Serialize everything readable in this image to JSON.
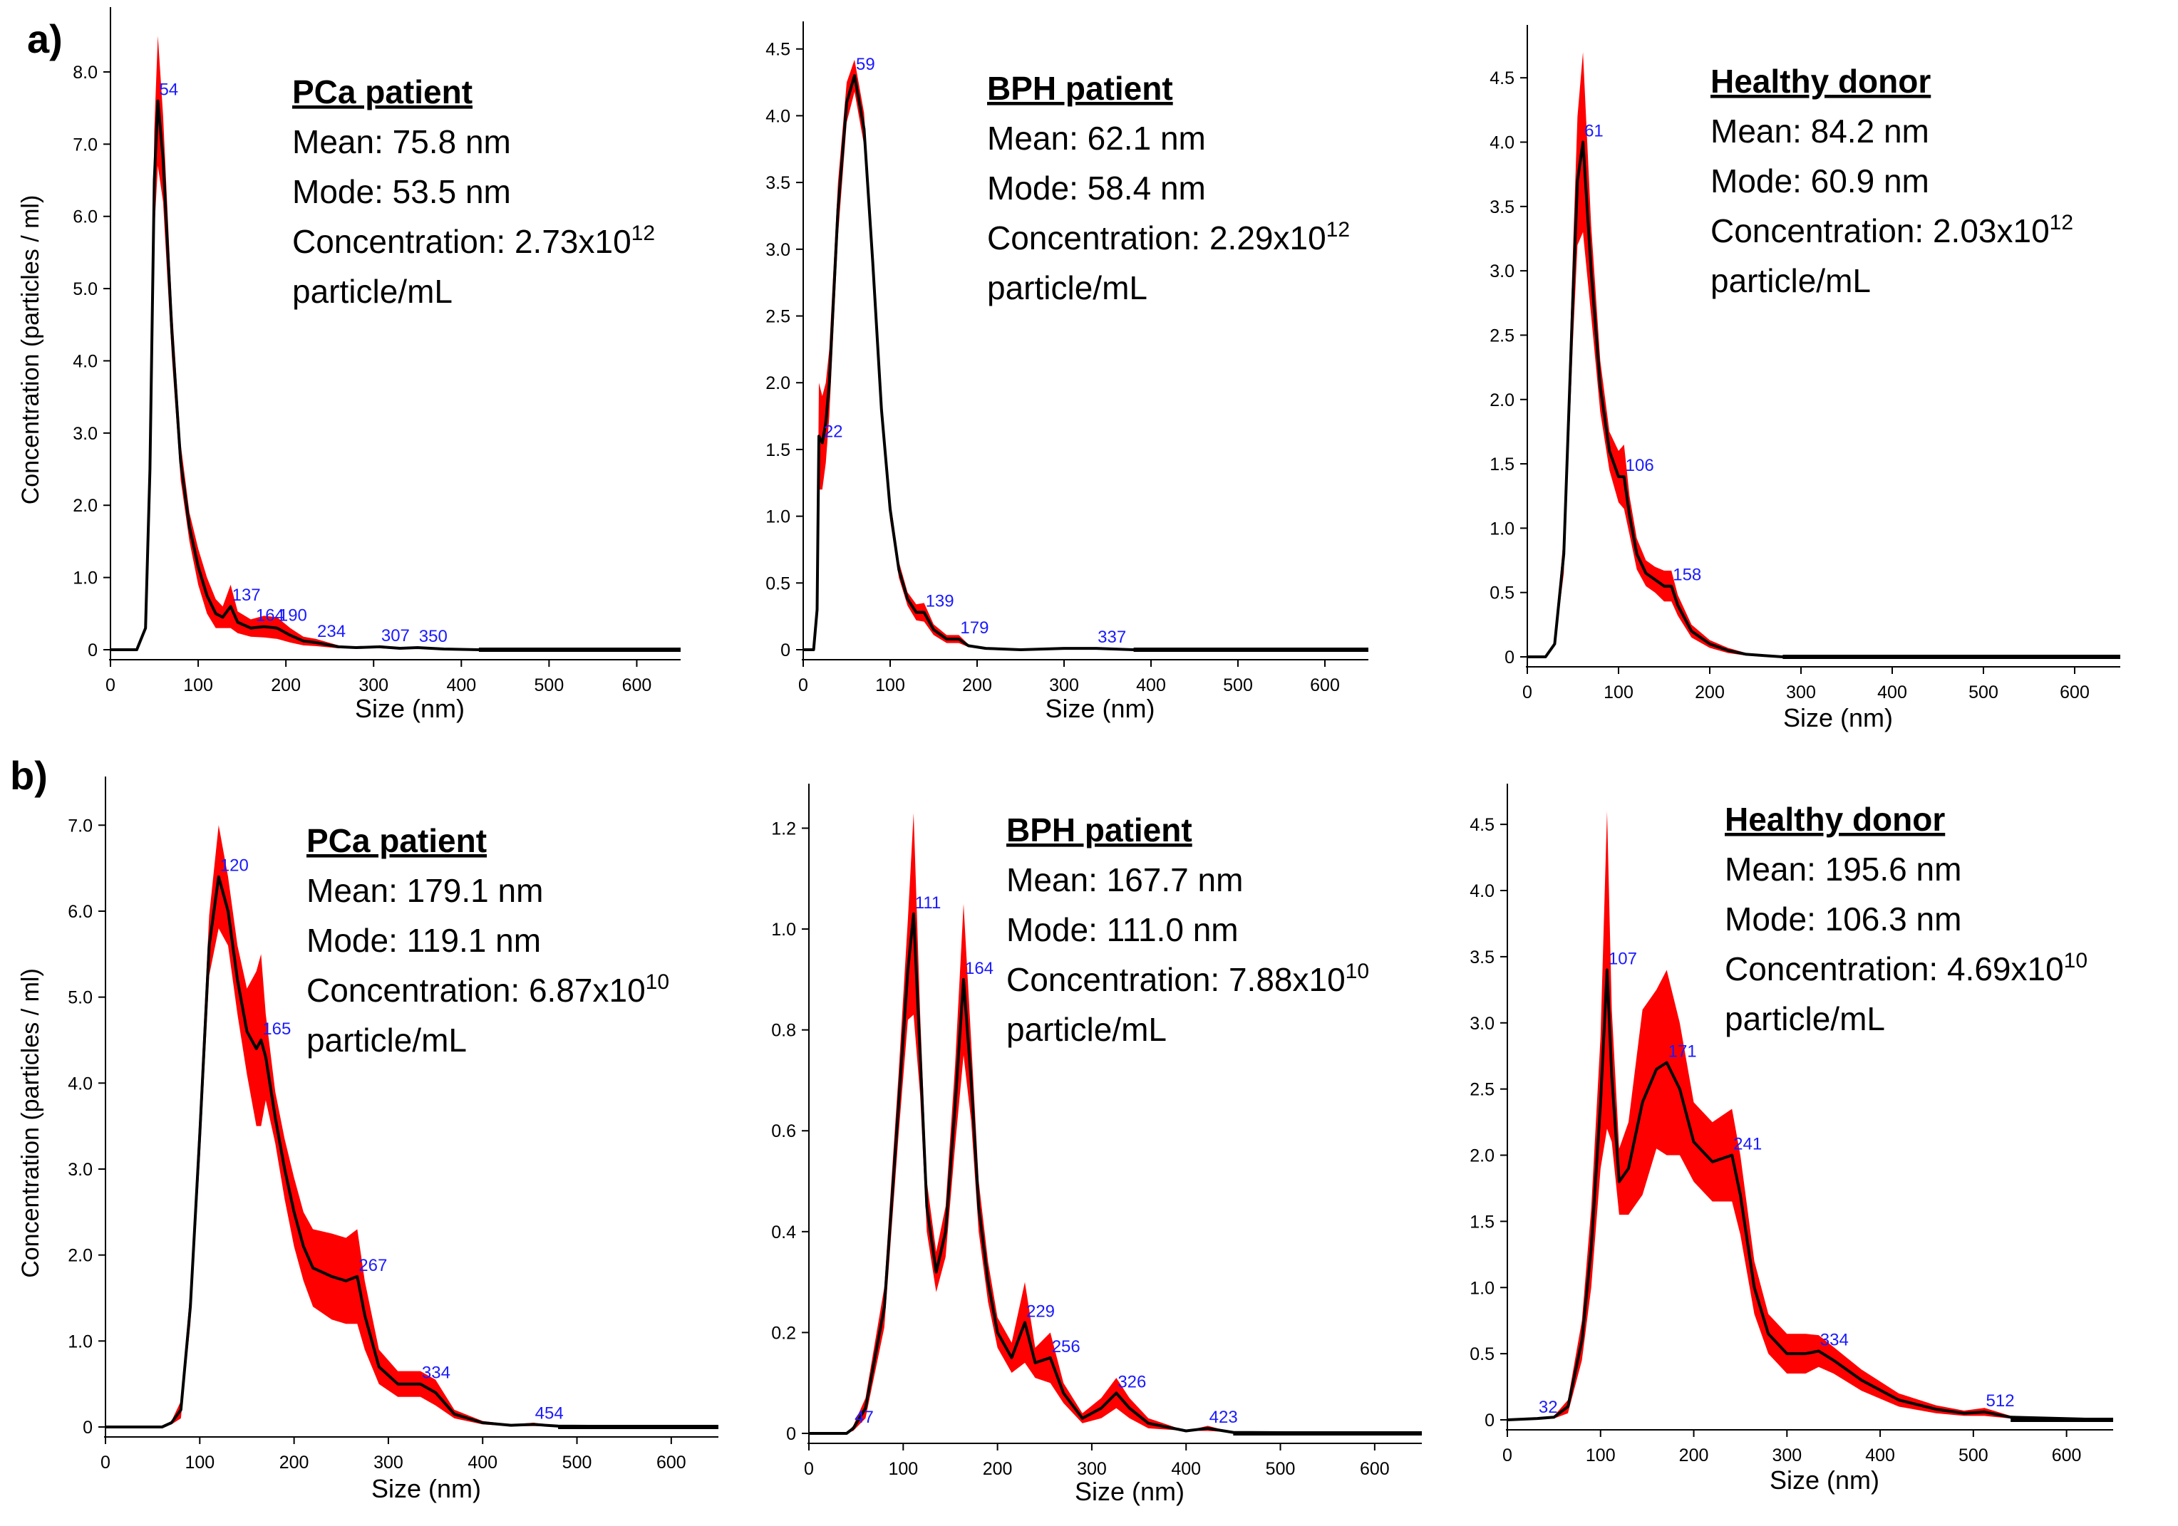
{
  "colors": {
    "curve": "#000000",
    "band": "#ff0000",
    "peak_label": "#1a1aff",
    "axis": "#000000"
  },
  "panel_labels": [
    "a)",
    "b)"
  ],
  "common": {
    "xlabel": "Size (nm)",
    "ylabel": "Concentration (particles / ml)",
    "xlim": [
      0,
      650
    ],
    "xticks": [
      0,
      100,
      200,
      300,
      400,
      500,
      600
    ]
  },
  "chart_data": [
    {
      "type": "line",
      "row": "a",
      "title": "PCa patient",
      "stats": {
        "mean": "Mean: 75.8 nm",
        "mode": "Mode: 53.5 nm",
        "conc": "Concentration: 2.73x10",
        "conc_exp": "12",
        "unit": "particle/mL"
      },
      "ylim": [
        0,
        8.7
      ],
      "yticks": [
        0,
        1.0,
        2.0,
        3.0,
        4.0,
        5.0,
        6.0,
        7.0,
        8.0
      ],
      "ytick_labels": [
        "0",
        "1.0",
        "2.0",
        "3.0",
        "4.0",
        "5.0",
        "6.0",
        "7.0",
        "8.0"
      ],
      "show_ylabel": true,
      "x": [
        0,
        30,
        40,
        45,
        50,
        54,
        60,
        70,
        80,
        90,
        100,
        110,
        120,
        128,
        137,
        145,
        160,
        175,
        190,
        205,
        220,
        234,
        260,
        280,
        307,
        330,
        350,
        380,
        420,
        650
      ],
      "y": [
        0,
        0,
        0.3,
        2.5,
        6.5,
        7.6,
        6.8,
        4.4,
        2.6,
        1.7,
        1.15,
        0.75,
        0.5,
        0.45,
        0.6,
        0.38,
        0.3,
        0.32,
        0.3,
        0.2,
        0.12,
        0.1,
        0.04,
        0.03,
        0.04,
        0.02,
        0.03,
        0.01,
        0,
        0
      ],
      "band": [
        0,
        0,
        0.05,
        0.3,
        0.7,
        0.9,
        0.6,
        0.35,
        0.25,
        0.2,
        0.25,
        0.25,
        0.2,
        0.15,
        0.3,
        0.15,
        0.12,
        0.15,
        0.15,
        0.1,
        0.06,
        0.05,
        0.02,
        0.01,
        0.02,
        0.01,
        0.01,
        0,
        0,
        0
      ],
      "peaks": [
        {
          "label": "54",
          "x": 54,
          "y": 7.6
        },
        {
          "label": "137",
          "x": 137,
          "y": 0.6
        },
        {
          "label": "164",
          "x": 164,
          "y": 0.32
        },
        {
          "label": "190",
          "x": 190,
          "y": 0.32
        },
        {
          "label": "234",
          "x": 234,
          "y": 0.1
        },
        {
          "label": "307",
          "x": 307,
          "y": 0.04
        },
        {
          "label": "350",
          "x": 350,
          "y": 0.03
        }
      ]
    },
    {
      "type": "line",
      "row": "a",
      "title": "BPH patient",
      "stats": {
        "mean": "Mean: 62.1 nm",
        "mode": "Mode: 58.4 nm",
        "conc": "Concentration: 2.29x10",
        "conc_exp": "12",
        "unit": "particle/mL"
      },
      "ylim": [
        0,
        4.6
      ],
      "yticks": [
        0,
        0.5,
        1.0,
        1.5,
        2.0,
        2.5,
        3.0,
        3.5,
        4.0,
        4.5
      ],
      "ytick_labels": [
        "0",
        "0.5",
        "1.0",
        "1.5",
        "2.0",
        "2.5",
        "3.0",
        "3.5",
        "4.0",
        "4.5"
      ],
      "show_ylabel": false,
      "x": [
        0,
        12,
        16,
        18,
        22,
        26,
        30,
        40,
        50,
        59,
        70,
        80,
        90,
        100,
        110,
        120,
        130,
        139,
        150,
        165,
        179,
        190,
        210,
        250,
        300,
        337,
        380,
        650
      ],
      "y": [
        0,
        0,
        0.3,
        1.6,
        1.55,
        1.7,
        2.0,
        3.3,
        4.1,
        4.3,
        3.9,
        2.9,
        1.8,
        1.05,
        0.6,
        0.38,
        0.28,
        0.28,
        0.15,
        0.08,
        0.08,
        0.03,
        0.01,
        0,
        0.01,
        0.01,
        0,
        0
      ],
      "band": [
        0,
        0,
        0.05,
        0.4,
        0.35,
        0.3,
        0.25,
        0.2,
        0.15,
        0.12,
        0.12,
        0.1,
        0.1,
        0.08,
        0.06,
        0.05,
        0.06,
        0.07,
        0.04,
        0.03,
        0.03,
        0.01,
        0,
        0,
        0,
        0,
        0,
        0
      ],
      "peaks": [
        {
          "label": "59",
          "x": 59,
          "y": 4.3
        },
        {
          "label": "22",
          "x": 22,
          "y": 1.55
        },
        {
          "label": "139",
          "x": 139,
          "y": 0.28
        },
        {
          "label": "179",
          "x": 179,
          "y": 0.08
        },
        {
          "label": "337",
          "x": 337,
          "y": 0.01
        }
      ]
    },
    {
      "type": "line",
      "row": "a",
      "title": "Healthy donor",
      "stats": {
        "mean": "Mean: 84.2 nm",
        "mode": "Mode: 60.9 nm",
        "conc": "Concentration: 2.03x10",
        "conc_exp": "12",
        "unit": "particle/mL"
      },
      "ylim": [
        0,
        4.8
      ],
      "yticks": [
        0,
        0.5,
        1.0,
        1.5,
        2.0,
        2.5,
        3.0,
        3.5,
        4.0,
        4.5
      ],
      "ytick_labels": [
        "0",
        "0.5",
        "1.0",
        "1.5",
        "2.0",
        "2.5",
        "3.0",
        "3.5",
        "4.0",
        "4.5"
      ],
      "show_ylabel": false,
      "x": [
        0,
        20,
        30,
        40,
        50,
        55,
        61,
        70,
        80,
        90,
        100,
        106,
        112,
        120,
        130,
        140,
        150,
        158,
        165,
        180,
        200,
        220,
        240,
        260,
        280,
        650
      ],
      "y": [
        0,
        0,
        0.1,
        0.8,
        2.8,
        3.7,
        4.0,
        3.0,
        2.1,
        1.6,
        1.4,
        1.4,
        1.1,
        0.8,
        0.65,
        0.6,
        0.55,
        0.55,
        0.4,
        0.2,
        0.1,
        0.05,
        0.02,
        0.01,
        0,
        0
      ],
      "band": [
        0,
        0,
        0.02,
        0.15,
        0.35,
        0.5,
        0.7,
        0.35,
        0.2,
        0.15,
        0.2,
        0.25,
        0.15,
        0.12,
        0.1,
        0.1,
        0.12,
        0.12,
        0.08,
        0.05,
        0.03,
        0.02,
        0.01,
        0,
        0,
        0
      ],
      "peaks": [
        {
          "label": "61",
          "x": 61,
          "y": 4.0
        },
        {
          "label": "106",
          "x": 106,
          "y": 1.4
        },
        {
          "label": "158",
          "x": 158,
          "y": 0.55
        }
      ]
    },
    {
      "type": "line",
      "row": "b",
      "title": "PCa patient",
      "stats": {
        "mean": "Mean: 179.1 nm",
        "mode": "Mode: 119.1 nm",
        "conc": "Concentration: 6.87x10",
        "conc_exp": "10",
        "unit": "particle/mL"
      },
      "ylim": [
        0,
        7.4
      ],
      "yticks": [
        0,
        1.0,
        2.0,
        3.0,
        4.0,
        5.0,
        6.0,
        7.0
      ],
      "ytick_labels": [
        "0",
        "1.0",
        "2.0",
        "3.0",
        "4.0",
        "5.0",
        "6.0",
        "7.0"
      ],
      "show_ylabel": true,
      "x": [
        0,
        60,
        70,
        80,
        90,
        100,
        110,
        120,
        130,
        140,
        150,
        160,
        165,
        170,
        180,
        190,
        200,
        210,
        220,
        240,
        255,
        267,
        275,
        290,
        310,
        334,
        350,
        370,
        400,
        430,
        454,
        480,
        650
      ],
      "y": [
        0,
        0,
        0.05,
        0.2,
        1.4,
        3.4,
        5.6,
        6.4,
        6.0,
        5.2,
        4.6,
        4.4,
        4.5,
        4.3,
        3.6,
        3.0,
        2.5,
        2.1,
        1.85,
        1.75,
        1.7,
        1.75,
        1.3,
        0.7,
        0.5,
        0.5,
        0.4,
        0.15,
        0.05,
        0.02,
        0.03,
        0.01,
        0
      ],
      "band": [
        0,
        0,
        0.02,
        0.1,
        0.2,
        0.3,
        0.35,
        0.6,
        0.4,
        0.4,
        0.5,
        0.9,
        1.0,
        0.5,
        0.3,
        0.35,
        0.4,
        0.4,
        0.45,
        0.5,
        0.5,
        0.55,
        0.4,
        0.2,
        0.15,
        0.15,
        0.15,
        0.05,
        0.02,
        0.01,
        0.02,
        0,
        0
      ],
      "peaks": [
        {
          "label": "120",
          "x": 120,
          "y": 6.4
        },
        {
          "label": "165",
          "x": 165,
          "y": 4.5
        },
        {
          "label": "267",
          "x": 267,
          "y": 1.75
        },
        {
          "label": "334",
          "x": 334,
          "y": 0.5
        },
        {
          "label": "454",
          "x": 454,
          "y": 0.03
        }
      ]
    },
    {
      "type": "line",
      "row": "b",
      "title": "BPH patient",
      "stats": {
        "mean": "Mean: 167.7 nm",
        "mode": "Mode: 111.0 nm",
        "conc": "Concentration: 7.88x10",
        "conc_exp": "10",
        "unit": "particle/mL"
      },
      "ylim": [
        0,
        1.26
      ],
      "yticks": [
        0,
        0.2,
        0.4,
        0.6,
        0.8,
        1.0,
        1.2
      ],
      "ytick_labels": [
        "0",
        "0.2",
        "0.4",
        "0.6",
        "0.8",
        "1.0",
        "1.2"
      ],
      "show_ylabel": false,
      "x": [
        0,
        40,
        47,
        60,
        80,
        95,
        105,
        111,
        118,
        125,
        135,
        145,
        155,
        164,
        172,
        180,
        190,
        200,
        215,
        229,
        240,
        256,
        270,
        290,
        310,
        326,
        340,
        360,
        400,
        423,
        450,
        650
      ],
      "y": [
        0,
        0,
        0.01,
        0.05,
        0.25,
        0.65,
        0.92,
        1.03,
        0.75,
        0.45,
        0.32,
        0.4,
        0.65,
        0.9,
        0.7,
        0.45,
        0.3,
        0.2,
        0.15,
        0.22,
        0.14,
        0.15,
        0.08,
        0.03,
        0.05,
        0.08,
        0.05,
        0.02,
        0.005,
        0.01,
        0.002,
        0
      ],
      "band": [
        0,
        0,
        0.005,
        0.02,
        0.04,
        0.06,
        0.1,
        0.2,
        0.08,
        0.05,
        0.04,
        0.05,
        0.08,
        0.15,
        0.08,
        0.05,
        0.04,
        0.03,
        0.03,
        0.08,
        0.03,
        0.05,
        0.02,
        0.01,
        0.02,
        0.03,
        0.02,
        0.01,
        0,
        0.005,
        0,
        0
      ],
      "peaks": [
        {
          "label": "111",
          "x": 111,
          "y": 1.03
        },
        {
          "label": "164",
          "x": 164,
          "y": 0.9
        },
        {
          "label": "47",
          "x": 47,
          "y": 0.01
        },
        {
          "label": "229",
          "x": 229,
          "y": 0.22
        },
        {
          "label": "256",
          "x": 256,
          "y": 0.15
        },
        {
          "label": "326",
          "x": 326,
          "y": 0.08
        },
        {
          "label": "423",
          "x": 423,
          "y": 0.01
        }
      ]
    },
    {
      "type": "line",
      "row": "b",
      "title": "Healthy donor",
      "stats": {
        "mean": "Mean: 195.6 nm",
        "mode": "Mode: 106.3 nm",
        "conc": "Concentration: 4.69x10",
        "conc_exp": "10",
        "unit": "particle/mL"
      },
      "ylim": [
        0,
        4.7
      ],
      "yticks": [
        0,
        0.5,
        1.0,
        1.5,
        2.0,
        2.5,
        3.0,
        3.5,
        4.0,
        4.5
      ],
      "ytick_labels": [
        "0",
        "0.5",
        "1.0",
        "1.5",
        "2.0",
        "2.5",
        "3.0",
        "3.5",
        "4.0",
        "4.5"
      ],
      "show_ylabel": false,
      "x": [
        0,
        32,
        50,
        65,
        80,
        90,
        100,
        107,
        112,
        120,
        130,
        145,
        160,
        171,
        185,
        200,
        220,
        241,
        250,
        265,
        280,
        300,
        320,
        334,
        350,
        380,
        420,
        460,
        490,
        512,
        540,
        650
      ],
      "y": [
        0,
        0.01,
        0.02,
        0.1,
        0.6,
        1.3,
        2.4,
        3.4,
        2.6,
        1.8,
        1.9,
        2.4,
        2.65,
        2.7,
        2.5,
        2.1,
        1.95,
        2.0,
        1.7,
        1.0,
        0.65,
        0.5,
        0.5,
        0.52,
        0.45,
        0.3,
        0.15,
        0.08,
        0.05,
        0.06,
        0.02,
        0
      ],
      "band": [
        0,
        0,
        0.01,
        0.05,
        0.15,
        0.3,
        0.5,
        1.2,
        0.5,
        0.25,
        0.35,
        0.7,
        0.6,
        0.7,
        0.5,
        0.3,
        0.3,
        0.35,
        0.3,
        0.2,
        0.15,
        0.15,
        0.15,
        0.12,
        0.1,
        0.08,
        0.05,
        0.03,
        0.02,
        0.03,
        0.01,
        0
      ],
      "peaks": [
        {
          "label": "107",
          "x": 107,
          "y": 3.4
        },
        {
          "label": "171",
          "x": 171,
          "y": 2.7
        },
        {
          "label": "241",
          "x": 241,
          "y": 2.0
        },
        {
          "label": "334",
          "x": 334,
          "y": 0.52
        },
        {
          "label": "512",
          "x": 512,
          "y": 0.06
        },
        {
          "label": "32",
          "x": 32,
          "y": 0.01
        }
      ]
    }
  ]
}
